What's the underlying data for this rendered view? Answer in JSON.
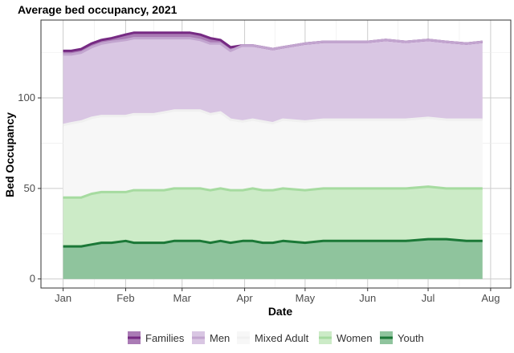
{
  "chart_data": {
    "type": "area",
    "stacked": true,
    "title": "Average bed occupancy, 2021",
    "xlabel": "Date",
    "ylabel": "Bed Occupancy",
    "x_ticks": [
      "Jan",
      "Feb",
      "Mar",
      "Apr",
      "May",
      "Jun",
      "Jul",
      "Aug"
    ],
    "y_ticks": [
      0,
      50,
      100
    ],
    "ylim": [
      -5,
      143
    ],
    "grid": true,
    "legend_position": "bottom",
    "x": [
      "2021-01-01",
      "2021-01-05",
      "2021-01-10",
      "2021-01-15",
      "2021-01-20",
      "2021-01-25",
      "2021-02-01",
      "2021-02-05",
      "2021-02-10",
      "2021-02-15",
      "2021-02-20",
      "2021-02-25",
      "2021-03-01",
      "2021-03-05",
      "2021-03-10",
      "2021-03-15",
      "2021-03-20",
      "2021-03-25",
      "2021-03-31",
      "2021-04-05",
      "2021-04-10",
      "2021-04-15",
      "2021-04-20",
      "2021-05-01",
      "2021-05-10",
      "2021-05-20",
      "2021-06-01",
      "2021-06-10",
      "2021-06-20",
      "2021-07-01",
      "2021-07-10",
      "2021-07-20",
      "2021-07-28"
    ],
    "series": [
      {
        "name": "Youth",
        "color": "#1b7837",
        "fill": "#8fc49d",
        "values": [
          18,
          18,
          18,
          19,
          20,
          20,
          21,
          20,
          20,
          20,
          20,
          21,
          21,
          21,
          21,
          20,
          21,
          20,
          21,
          21,
          20,
          20,
          21,
          20,
          21,
          21,
          21,
          21,
          21,
          22,
          22,
          21,
          21
        ]
      },
      {
        "name": "Women",
        "color": "#a6dba0",
        "fill": "#ccebc7",
        "values": [
          27,
          27,
          27,
          28,
          28,
          28,
          27,
          29,
          29,
          29,
          29,
          29,
          29,
          29,
          29,
          29,
          29,
          29,
          28,
          29,
          29,
          29,
          29,
          29,
          29,
          29,
          29,
          29,
          29,
          29,
          28,
          29,
          29
        ]
      },
      {
        "name": "Mixed Adult",
        "color": "#f0f0f0",
        "fill": "#f7f7f7",
        "values": [
          40,
          41,
          42,
          42,
          42,
          42,
          42,
          42,
          42,
          42,
          43,
          43,
          43,
          43,
          43,
          42,
          42,
          39,
          38,
          38,
          38,
          37,
          38,
          38,
          38,
          38,
          38,
          38,
          38,
          38,
          38,
          38,
          38
        ]
      },
      {
        "name": "Men",
        "color": "#c2a5cf",
        "fill": "#d9c6e3",
        "values": [
          39,
          38,
          38,
          39,
          40,
          41,
          42,
          42,
          42,
          42,
          41,
          40,
          40,
          40,
          39,
          39,
          38,
          38,
          42,
          41,
          41,
          41,
          40,
          43,
          43,
          43,
          43,
          44,
          43,
          43,
          43,
          42,
          43
        ]
      },
      {
        "name": "Families",
        "color": "#762a83",
        "fill": "#aa7bb5",
        "values": [
          2,
          2,
          2,
          2,
          2,
          2,
          3,
          3,
          3,
          3,
          3,
          3,
          3,
          3,
          3,
          3,
          2,
          2,
          0,
          0,
          0,
          0,
          0,
          0,
          0,
          0,
          0,
          0,
          0,
          0,
          0,
          0,
          0
        ]
      }
    ]
  }
}
